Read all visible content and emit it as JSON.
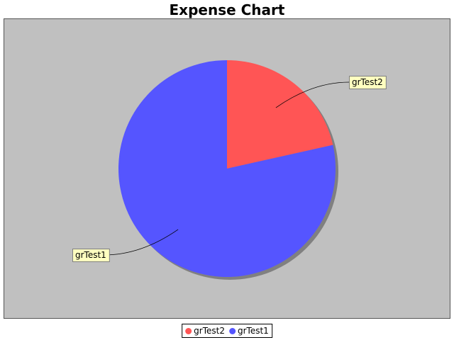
{
  "chart_data": {
    "type": "pie",
    "title": "Expense Chart",
    "slices": [
      {
        "label": "grTest2",
        "value": 21.5,
        "color": "#ff5555"
      },
      {
        "label": "grTest1",
        "value": 78.5,
        "color": "#5555ff"
      }
    ],
    "plot_background": "#c0c0c0",
    "legend_position": "bottom"
  }
}
